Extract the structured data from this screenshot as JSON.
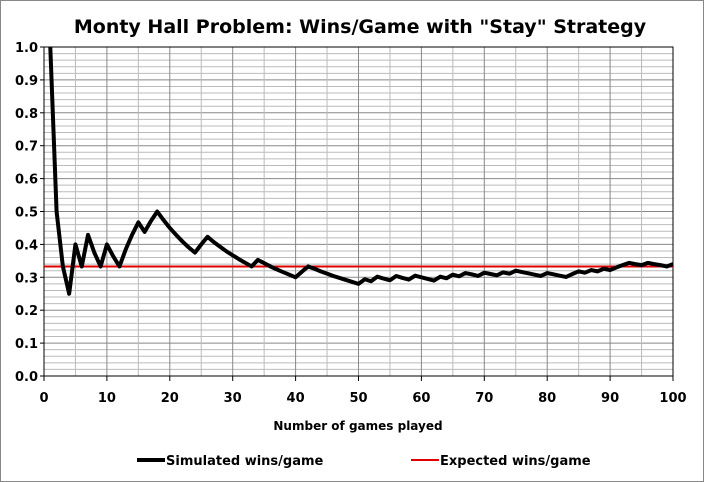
{
  "chart_data": {
    "type": "line",
    "title": "Monty Hall Problem: Wins/Game with \"Stay\" Strategy",
    "xlabel": "Number of games played",
    "ylabel": "",
    "xlim": [
      0,
      100
    ],
    "ylim": [
      0,
      1
    ],
    "xticks": [
      "0",
      "10",
      "20",
      "30",
      "40",
      "50",
      "60",
      "70",
      "80",
      "90",
      "100"
    ],
    "yticks": [
      "0.0",
      "0.1",
      "0.2",
      "0.3",
      "0.4",
      "0.5",
      "0.6",
      "0.7",
      "0.8",
      "0.9",
      "1.0"
    ],
    "grid": true,
    "legend_position": "bottom",
    "series": [
      {
        "name": "Simulated wins/game",
        "color": "#000000",
        "x": [
          1,
          2,
          3,
          4,
          5,
          6,
          7,
          8,
          9,
          10,
          11,
          12,
          13,
          14,
          15,
          16,
          17,
          18,
          19,
          20,
          21,
          22,
          23,
          24,
          25,
          26,
          27,
          28,
          29,
          30,
          31,
          32,
          33,
          34,
          35,
          36,
          37,
          38,
          39,
          40,
          41,
          42,
          43,
          44,
          45,
          46,
          47,
          48,
          49,
          50,
          51,
          52,
          53,
          54,
          55,
          56,
          57,
          58,
          59,
          60,
          61,
          62,
          63,
          64,
          65,
          66,
          67,
          68,
          69,
          70,
          71,
          72,
          73,
          74,
          75,
          76,
          77,
          78,
          79,
          80,
          81,
          82,
          83,
          84,
          85,
          86,
          87,
          88,
          89,
          90,
          91,
          92,
          93,
          94,
          95,
          96,
          97,
          98,
          99,
          100
        ],
        "y": [
          1.0,
          0.5,
          0.333,
          0.25,
          0.4,
          0.333,
          0.429,
          0.375,
          0.333,
          0.4,
          0.364,
          0.333,
          0.385,
          0.429,
          0.467,
          0.438,
          0.471,
          0.5,
          0.474,
          0.45,
          0.429,
          0.409,
          0.391,
          0.375,
          0.4,
          0.423,
          0.407,
          0.393,
          0.379,
          0.367,
          0.355,
          0.344,
          0.333,
          0.353,
          0.343,
          0.333,
          0.324,
          0.316,
          0.308,
          0.3,
          0.317,
          0.333,
          0.326,
          0.318,
          0.311,
          0.304,
          0.298,
          0.292,
          0.286,
          0.28,
          0.294,
          0.288,
          0.302,
          0.296,
          0.291,
          0.304,
          0.298,
          0.293,
          0.305,
          0.3,
          0.295,
          0.29,
          0.302,
          0.297,
          0.308,
          0.303,
          0.313,
          0.309,
          0.304,
          0.314,
          0.31,
          0.306,
          0.315,
          0.311,
          0.32,
          0.316,
          0.312,
          0.308,
          0.304,
          0.313,
          0.309,
          0.305,
          0.301,
          0.31,
          0.318,
          0.314,
          0.322,
          0.318,
          0.326,
          0.322,
          0.33,
          0.337,
          0.344,
          0.34,
          0.337,
          0.344,
          0.34,
          0.337,
          0.333,
          0.34
        ]
      },
      {
        "name": "Expected wins/game",
        "color": "#e00000",
        "x": [
          0,
          100
        ],
        "y": [
          0.333,
          0.333
        ]
      }
    ]
  }
}
